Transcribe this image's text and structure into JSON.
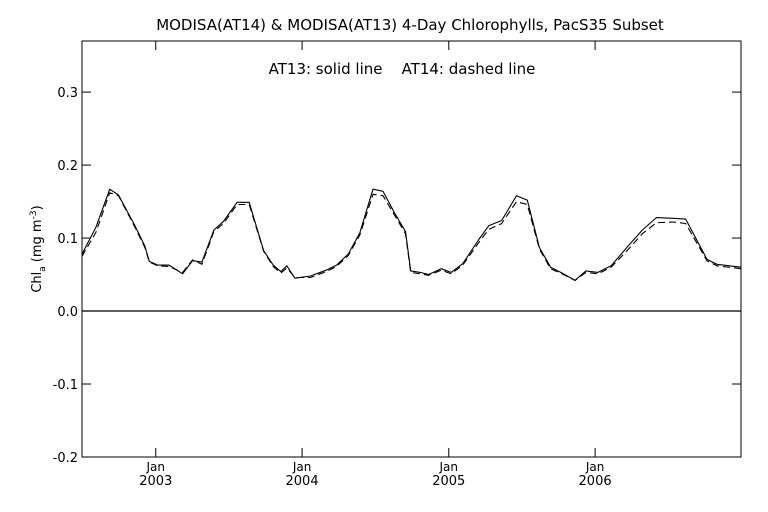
{
  "chart_data": {
    "type": "line",
    "title": "MODISA(AT14) & MODISA(AT13) 4-Day Chlorophylls, PacS35 Subset",
    "annotation": "AT13: solid line    AT14: dashed line",
    "ylabel": {
      "main": "Chl",
      "sub": "a",
      "unit": "(mg m",
      "sup": "-3",
      "close": ")"
    },
    "xlabel": "",
    "xlim": [
      "2002-07-01",
      "2006-12-31"
    ],
    "ylim": [
      -0.2,
      0.37
    ],
    "y_ticks": [
      {
        "value": -0.2,
        "label": "-0.2"
      },
      {
        "value": -0.1,
        "label": "-0.1"
      },
      {
        "value": 0.0,
        "label": "0.0"
      },
      {
        "value": 0.1,
        "label": "0.1"
      },
      {
        "value": 0.2,
        "label": "0.2"
      },
      {
        "value": 0.3,
        "label": "0.3"
      }
    ],
    "x_ticks": [
      {
        "date": "2003-01-01",
        "month": "Jan",
        "year": "2003"
      },
      {
        "date": "2004-01-01",
        "month": "Jan",
        "year": "2004"
      },
      {
        "date": "2005-01-01",
        "month": "Jan",
        "year": "2005"
      },
      {
        "date": "2006-01-01",
        "month": "Jan",
        "year": "2006"
      }
    ],
    "reference_line": 0.0,
    "series": [
      {
        "name": "AT13",
        "style": "solid",
        "points": [
          [
            "2002-07-01",
            0.078
          ],
          [
            "2002-08-05",
            0.115
          ],
          [
            "2002-09-08",
            0.167
          ],
          [
            "2002-09-30",
            0.159
          ],
          [
            "2002-11-09",
            0.118
          ],
          [
            "2002-12-05",
            0.089
          ],
          [
            "2002-12-16",
            0.068
          ],
          [
            "2003-01-06",
            0.063
          ],
          [
            "2003-02-03",
            0.063
          ],
          [
            "2003-03-09",
            0.051
          ],
          [
            "2003-04-03",
            0.069
          ],
          [
            "2003-04-26",
            0.067
          ],
          [
            "2003-05-26",
            0.111
          ],
          [
            "2003-06-19",
            0.123
          ],
          [
            "2003-07-23",
            0.149
          ],
          [
            "2003-08-22",
            0.149
          ],
          [
            "2003-09-27",
            0.083
          ],
          [
            "2003-10-21",
            0.063
          ],
          [
            "2003-11-09",
            0.054
          ],
          [
            "2003-11-24",
            0.062
          ],
          [
            "2003-12-14",
            0.045
          ],
          [
            "2004-01-22",
            0.048
          ],
          [
            "2004-03-01",
            0.056
          ],
          [
            "2004-03-27",
            0.063
          ],
          [
            "2004-04-25",
            0.078
          ],
          [
            "2004-05-24",
            0.107
          ],
          [
            "2004-06-26",
            0.167
          ],
          [
            "2004-07-21",
            0.164
          ],
          [
            "2004-08-18",
            0.135
          ],
          [
            "2004-09-15",
            0.109
          ],
          [
            "2004-09-28",
            0.055
          ],
          [
            "2004-10-22",
            0.053
          ],
          [
            "2004-11-12",
            0.05
          ],
          [
            "2004-12-13",
            0.058
          ],
          [
            "2005-01-07",
            0.053
          ],
          [
            "2005-02-05",
            0.065
          ],
          [
            "2005-03-17",
            0.098
          ],
          [
            "2005-04-11",
            0.117
          ],
          [
            "2005-05-13",
            0.124
          ],
          [
            "2005-06-19",
            0.158
          ],
          [
            "2005-07-16",
            0.152
          ],
          [
            "2005-08-15",
            0.087
          ],
          [
            "2005-09-12",
            0.06
          ],
          [
            "2005-10-14",
            0.051
          ],
          [
            "2005-11-12",
            0.042
          ],
          [
            "2005-12-09",
            0.055
          ],
          [
            "2006-01-08",
            0.053
          ],
          [
            "2006-02-10",
            0.062
          ],
          [
            "2006-03-24",
            0.089
          ],
          [
            "2006-04-29",
            0.111
          ],
          [
            "2006-06-03",
            0.128
          ],
          [
            "2006-07-14",
            0.127
          ],
          [
            "2006-08-15",
            0.126
          ],
          [
            "2006-10-07",
            0.071
          ],
          [
            "2006-11-01",
            0.064
          ],
          [
            "2006-12-31",
            0.06
          ]
        ]
      },
      {
        "name": "AT14",
        "style": "dashed",
        "points": [
          [
            "2002-07-01",
            0.075
          ],
          [
            "2002-08-05",
            0.108
          ],
          [
            "2002-09-08",
            0.162
          ],
          [
            "2002-09-30",
            0.158
          ],
          [
            "2002-11-09",
            0.116
          ],
          [
            "2002-12-05",
            0.087
          ],
          [
            "2002-12-16",
            0.067
          ],
          [
            "2003-01-06",
            0.062
          ],
          [
            "2003-02-03",
            0.061
          ],
          [
            "2003-03-09",
            0.053
          ],
          [
            "2003-04-03",
            0.07
          ],
          [
            "2003-04-26",
            0.064
          ],
          [
            "2003-05-26",
            0.109
          ],
          [
            "2003-06-19",
            0.12
          ],
          [
            "2003-07-23",
            0.146
          ],
          [
            "2003-08-22",
            0.146
          ],
          [
            "2003-09-27",
            0.082
          ],
          [
            "2003-10-21",
            0.061
          ],
          [
            "2003-11-09",
            0.052
          ],
          [
            "2003-11-24",
            0.059
          ],
          [
            "2003-12-14",
            0.046
          ],
          [
            "2004-01-22",
            0.046
          ],
          [
            "2004-03-01",
            0.054
          ],
          [
            "2004-03-27",
            0.061
          ],
          [
            "2004-04-25",
            0.076
          ],
          [
            "2004-05-24",
            0.104
          ],
          [
            "2004-06-26",
            0.16
          ],
          [
            "2004-07-21",
            0.158
          ],
          [
            "2004-08-18",
            0.132
          ],
          [
            "2004-09-15",
            0.106
          ],
          [
            "2004-09-28",
            0.053
          ],
          [
            "2004-10-22",
            0.051
          ],
          [
            "2004-11-12",
            0.049
          ],
          [
            "2004-12-13",
            0.056
          ],
          [
            "2005-01-07",
            0.051
          ],
          [
            "2005-02-05",
            0.063
          ],
          [
            "2005-03-17",
            0.094
          ],
          [
            "2005-04-11",
            0.112
          ],
          [
            "2005-05-13",
            0.12
          ],
          [
            "2005-06-19",
            0.15
          ],
          [
            "2005-07-16",
            0.146
          ],
          [
            "2005-08-15",
            0.085
          ],
          [
            "2005-09-12",
            0.058
          ],
          [
            "2005-10-14",
            0.05
          ],
          [
            "2005-11-12",
            0.042
          ],
          [
            "2005-12-09",
            0.053
          ],
          [
            "2006-01-08",
            0.051
          ],
          [
            "2006-02-10",
            0.06
          ],
          [
            "2006-03-24",
            0.084
          ],
          [
            "2006-04-29",
            0.106
          ],
          [
            "2006-06-03",
            0.121
          ],
          [
            "2006-07-14",
            0.122
          ],
          [
            "2006-08-15",
            0.12
          ],
          [
            "2006-10-07",
            0.069
          ],
          [
            "2006-11-01",
            0.062
          ],
          [
            "2006-12-31",
            0.058
          ]
        ]
      }
    ],
    "grid": false,
    "legend": "none"
  }
}
